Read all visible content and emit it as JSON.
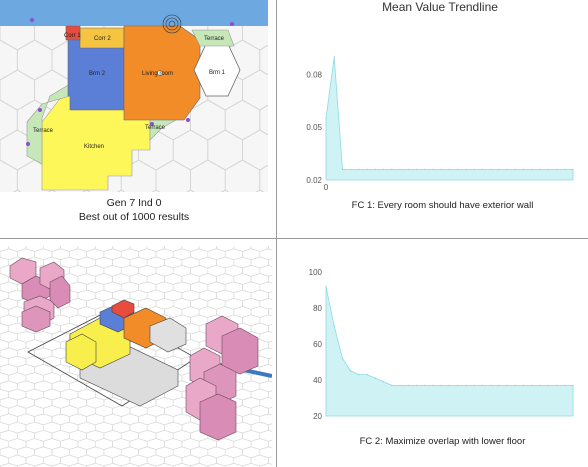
{
  "plan": {
    "rooms": [
      {
        "name": "Corr 1",
        "color": "#e74c3c"
      },
      {
        "name": "Corr 2",
        "color": "#f5c542"
      },
      {
        "name": "Brm 2",
        "color": "#5b7fd6"
      },
      {
        "name": "Living room",
        "color": "#f28c28"
      },
      {
        "name": "Brm 1",
        "color": "#ffffff"
      },
      {
        "name": "Terrace",
        "color": "#c6e7b8"
      },
      {
        "name": "Kitchen",
        "color": "#fef75a"
      }
    ],
    "caption_line1": "Gen 7 Ind 0",
    "caption_line2": "Best out of 1000 results",
    "sky_color": "#6ea8e0"
  },
  "trend_title": "Mean Value Trendline",
  "chart_data": [
    {
      "type": "area",
      "title": "FC 1: Every room should have exterior wall",
      "x": [
        0,
        1,
        2,
        3,
        4,
        5,
        6,
        7,
        8,
        9,
        10,
        11,
        12,
        13,
        14,
        15,
        16,
        17,
        18,
        19,
        20,
        21,
        22,
        23,
        24,
        25,
        26,
        27,
        28,
        29,
        30
      ],
      "y": [
        0.055,
        0.09,
        0.026,
        0.026,
        0.026,
        0.026,
        0.026,
        0.026,
        0.026,
        0.026,
        0.026,
        0.026,
        0.026,
        0.026,
        0.026,
        0.026,
        0.026,
        0.026,
        0.026,
        0.026,
        0.026,
        0.026,
        0.026,
        0.026,
        0.026,
        0.026,
        0.026,
        0.026,
        0.026,
        0.026,
        0.026
      ],
      "yticks": [
        "0.08",
        "0.05",
        "0.02"
      ],
      "ylim": [
        0.02,
        0.095
      ],
      "xtick": "0",
      "color": "#bfeef2"
    },
    {
      "type": "area",
      "title": "FC 2: Maximize overlap with lower floor",
      "x": [
        0,
        1,
        2,
        3,
        4,
        5,
        6,
        7,
        8,
        9,
        10,
        11,
        12,
        13,
        14,
        15,
        16,
        17,
        18,
        19,
        20,
        21,
        22,
        23,
        24,
        25,
        26,
        27,
        28,
        29,
        30
      ],
      "y": [
        92,
        70,
        52,
        45,
        43,
        43,
        41,
        39,
        37,
        37,
        37,
        37,
        37,
        37,
        37,
        37,
        37,
        37,
        37,
        37,
        37,
        37,
        37,
        37,
        37,
        37,
        37,
        37,
        37,
        37,
        37
      ],
      "yticks": [
        "100",
        "80",
        "60",
        "40",
        "20"
      ],
      "ylim": [
        20,
        100
      ],
      "color": "#bfeef2"
    }
  ]
}
